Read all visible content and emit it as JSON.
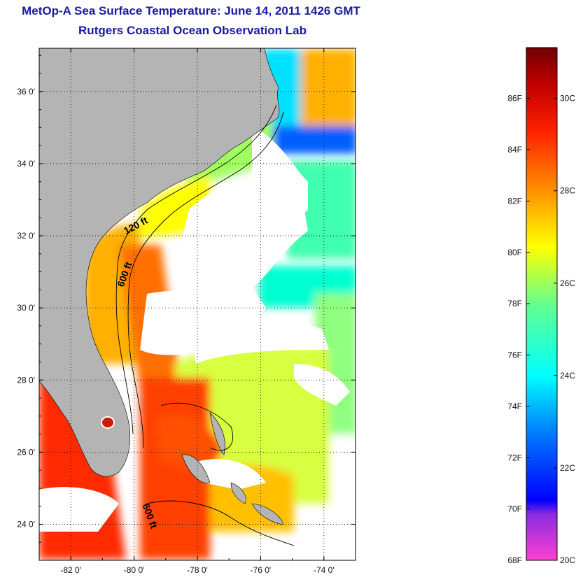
{
  "header": {
    "title": "MetOp-A Sea Surface Temperature:  June 14, 2011 1426 GMT",
    "subtitle": "Rutgers Coastal Ocean Observation Lab"
  },
  "map": {
    "lon_range": [
      -83,
      -73
    ],
    "lat_range": [
      23,
      37.2
    ],
    "lon_ticks": [
      {
        "value": -82,
        "label": "-82 0'"
      },
      {
        "value": -80,
        "label": "-80 0'"
      },
      {
        "value": -78,
        "label": "-78 0'"
      },
      {
        "value": -76,
        "label": "-76 0'"
      },
      {
        "value": -74,
        "label": "-74 0'"
      }
    ],
    "lat_ticks": [
      {
        "value": 36,
        "label": "36 0'"
      },
      {
        "value": 34,
        "label": "34 0'"
      },
      {
        "value": 32,
        "label": "32 0'"
      },
      {
        "value": 30,
        "label": "30 0'"
      },
      {
        "value": 28,
        "label": "28 0'"
      },
      {
        "value": 26,
        "label": "26 0'"
      },
      {
        "value": 24,
        "label": "24 0'"
      }
    ],
    "contour_labels": [
      {
        "text": "120 ft",
        "lon": -79.9,
        "lat": 32.2,
        "angle": -28
      },
      {
        "text": "600 ft",
        "lon": -80.2,
        "lat": 30.9,
        "angle": -70
      },
      {
        "text": "600 ft",
        "lon": -79.6,
        "lat": 24.2,
        "angle": 70
      }
    ],
    "colors": {
      "land": "#b4b4b4",
      "cloud": "#ffffff",
      "frame": "#000000"
    }
  },
  "colorbar": {
    "range_c": [
      20,
      31.1
    ],
    "stops": [
      {
        "c": 20,
        "color": "#ff40d0"
      },
      {
        "c": 21,
        "color": "#8a2be2"
      },
      {
        "c": 21.3,
        "color": "#0000ff"
      },
      {
        "c": 22.8,
        "color": "#0080ff"
      },
      {
        "c": 24,
        "color": "#00ffff"
      },
      {
        "c": 25.5,
        "color": "#60ff90"
      },
      {
        "c": 26.8,
        "color": "#ffff00"
      },
      {
        "c": 28,
        "color": "#ff9000"
      },
      {
        "c": 29.3,
        "color": "#ff2000"
      },
      {
        "c": 30.3,
        "color": "#c00000"
      },
      {
        "c": 31.1,
        "color": "#700000"
      }
    ],
    "fahrenheit_labels": [
      "68F",
      "70F",
      "72F",
      "74F",
      "76F",
      "78F",
      "80F",
      "82F",
      "84F",
      "86F"
    ],
    "celsius_labels": [
      "20C",
      "22C",
      "24C",
      "26C",
      "28C",
      "30C"
    ]
  }
}
